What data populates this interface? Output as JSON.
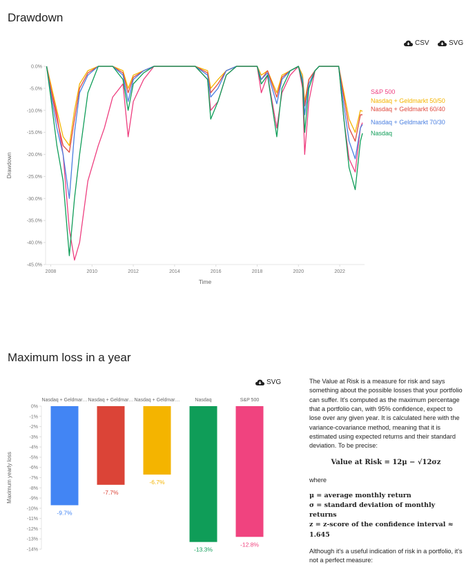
{
  "drawdown": {
    "title": "Drawdown",
    "downloads": {
      "csv": "CSV",
      "svg": "SVG"
    },
    "chart_data": {
      "type": "line",
      "title": "",
      "xlabel": "Time",
      "ylabel": "Drawdown",
      "ylim": [
        -45,
        0
      ],
      "yticks": [
        "0.0%",
        "-5.0%",
        "-10.0%",
        "-15.0%",
        "-20.0%",
        "-25.0%",
        "-30.0%",
        "-35.0%",
        "-40.0%",
        "-45.0%"
      ],
      "xticks": [
        "2008",
        "2010",
        "2012",
        "2014",
        "2016",
        "2018",
        "2020",
        "2022"
      ],
      "xlim": [
        2007.75,
        2023.2
      ],
      "grid": false,
      "legend": "right, at line ends",
      "series": [
        {
          "name": "S&P 500",
          "color": "#ee3e7f",
          "x": [
            2007.8,
            2008.0,
            2008.3,
            2008.6,
            2008.9,
            2009.15,
            2009.4,
            2009.8,
            2010.3,
            2010.6,
            2011.0,
            2011.5,
            2011.75,
            2012.0,
            2012.5,
            2013.0,
            2014.0,
            2015.0,
            2015.6,
            2015.75,
            2016.1,
            2016.5,
            2017.0,
            2018.0,
            2018.2,
            2018.5,
            2018.95,
            2019.2,
            2019.6,
            2020.0,
            2020.2,
            2020.3,
            2020.5,
            2020.8,
            2021.0,
            2021.5,
            2021.95,
            2022.2,
            2022.45,
            2022.75,
            2023.0,
            2023.1
          ],
          "y": [
            0,
            -4,
            -11,
            -20,
            -37,
            -44,
            -40,
            -26,
            -18,
            -14,
            -7,
            -4,
            -16,
            -8,
            -3,
            0,
            0,
            0,
            -3,
            -10,
            -8,
            -2,
            0,
            0,
            -6,
            -2,
            -14,
            -6,
            -2,
            0,
            -5,
            -20,
            -8,
            -1,
            0,
            0,
            0,
            -12,
            -21,
            -24,
            -14,
            -12.8
          ]
        },
        {
          "name": "Nasdaq + Geldmarkt 50/50",
          "color": "#f4b400",
          "x": [
            2007.8,
            2008.0,
            2008.3,
            2008.6,
            2008.9,
            2009.15,
            2009.4,
            2009.8,
            2010.3,
            2010.6,
            2011.0,
            2011.5,
            2011.75,
            2012.0,
            2012.5,
            2013.0,
            2014.0,
            2015.0,
            2015.6,
            2015.75,
            2016.1,
            2016.5,
            2017.0,
            2018.0,
            2018.2,
            2018.5,
            2018.95,
            2019.2,
            2019.6,
            2020.0,
            2020.2,
            2020.3,
            2020.5,
            2020.8,
            2021.0,
            2021.5,
            2021.95,
            2022.2,
            2022.45,
            2022.75,
            2023.0,
            2023.1
          ],
          "y": [
            0,
            -4,
            -10,
            -16,
            -18,
            -10,
            -4,
            -1,
            0,
            0,
            0,
            -1,
            -5,
            -2,
            -1,
            0,
            0,
            0,
            -1,
            -5,
            -3,
            -1,
            0,
            0,
            -2,
            -1,
            -6,
            -2,
            -1,
            0,
            -2,
            -8,
            -3,
            -1,
            0,
            0,
            0,
            -6,
            -12,
            -15,
            -10,
            -10.2
          ]
        },
        {
          "name": "Nasdaq + Geldmarkt 60/40",
          "color": "#e04a3f",
          "x": [
            2007.8,
            2008.0,
            2008.3,
            2008.6,
            2008.9,
            2009.15,
            2009.4,
            2009.8,
            2010.3,
            2010.6,
            2011.0,
            2011.5,
            2011.75,
            2012.0,
            2012.5,
            2013.0,
            2014.0,
            2015.0,
            2015.6,
            2015.75,
            2016.1,
            2016.5,
            2017.0,
            2018.0,
            2018.2,
            2018.5,
            2018.95,
            2019.2,
            2019.6,
            2020.0,
            2020.2,
            2020.3,
            2020.5,
            2020.8,
            2021.0,
            2021.5,
            2021.95,
            2022.2,
            2022.45,
            2022.75,
            2023.0,
            2023.1
          ],
          "y": [
            0,
            -5,
            -12,
            -18,
            -19.5,
            -12,
            -5,
            -1.5,
            0,
            0,
            0,
            -1.5,
            -6,
            -2.5,
            -1,
            0,
            0,
            0,
            -1.5,
            -6,
            -4,
            -1,
            0,
            0,
            -3,
            -1,
            -7,
            -2.5,
            -1,
            0,
            -3,
            -9,
            -3,
            -1,
            0,
            0,
            0,
            -7,
            -14,
            -17,
            -11,
            -11.0
          ]
        },
        {
          "name": "Nasdaq + Geldmarkt 70/30",
          "color": "#4a7fe0",
          "x": [
            2007.8,
            2008.0,
            2008.3,
            2008.6,
            2008.9,
            2009.15,
            2009.4,
            2009.8,
            2010.3,
            2010.6,
            2011.0,
            2011.5,
            2011.75,
            2012.0,
            2012.5,
            2013.0,
            2014.0,
            2015.0,
            2015.6,
            2015.75,
            2016.1,
            2016.5,
            2017.0,
            2018.0,
            2018.2,
            2018.5,
            2018.95,
            2019.2,
            2019.6,
            2020.0,
            2020.2,
            2020.3,
            2020.5,
            2020.8,
            2021.0,
            2021.5,
            2021.95,
            2022.2,
            2022.45,
            2022.75,
            2023.0,
            2023.1
          ],
          "y": [
            0,
            -6,
            -14,
            -20,
            -30,
            -15,
            -6,
            -2,
            0,
            0,
            0,
            -2,
            -8,
            -3,
            -1,
            0,
            0,
            0,
            -2,
            -7,
            -5,
            -1,
            0,
            0,
            -3,
            -1.5,
            -8.5,
            -3,
            -1,
            0,
            -3,
            -11,
            -4,
            -1,
            0,
            0,
            0,
            -9,
            -17,
            -21,
            -14,
            -13.2
          ]
        },
        {
          "name": "Nasdaq",
          "color": "#0f9d58",
          "x": [
            2007.8,
            2008.0,
            2008.3,
            2008.6,
            2008.9,
            2009.15,
            2009.4,
            2009.8,
            2010.3,
            2010.6,
            2011.0,
            2011.5,
            2011.75,
            2012.0,
            2012.5,
            2013.0,
            2014.0,
            2015.0,
            2015.6,
            2015.75,
            2016.1,
            2016.5,
            2017.0,
            2018.0,
            2018.2,
            2018.5,
            2018.95,
            2019.2,
            2019.6,
            2020.0,
            2020.2,
            2020.3,
            2020.5,
            2020.8,
            2021.0,
            2021.5,
            2021.95,
            2022.2,
            2022.45,
            2022.75,
            2023.0,
            2023.1
          ],
          "y": [
            0,
            -7,
            -18,
            -26,
            -43,
            -30,
            -20,
            -6,
            0,
            0,
            0,
            -3,
            -10,
            -4,
            -1.5,
            0,
            0,
            0,
            -3,
            -12,
            -8,
            -2,
            0,
            0,
            -4,
            -2,
            -16,
            -5,
            -1,
            0,
            -4,
            -15,
            -5,
            -1,
            0,
            0,
            0,
            -12,
            -23,
            -28,
            -17,
            -15.2
          ]
        }
      ]
    }
  },
  "var": {
    "title": "Maximum loss in a year",
    "downloads": {
      "svg": "SVG"
    },
    "chart_data": {
      "type": "bar",
      "title": "",
      "xlabel": "",
      "ylabel": "Maximum yearly loss",
      "ylim": [
        -14,
        0
      ],
      "yticks": [
        "0%",
        "-1%",
        "-2%",
        "-3%",
        "-4%",
        "-5%",
        "-6%",
        "-7%",
        "-8%",
        "-9%",
        "-10%",
        "-11%",
        "-12%",
        "-13%",
        "-14%"
      ],
      "categories": [
        "Nasdaq + Geldmar…",
        "Nasdaq + Geldmar…",
        "Nasdaq + Geldmar…",
        "Nasdaq",
        "S&P 500"
      ],
      "values": [
        -9.7,
        -7.7,
        -6.7,
        -13.3,
        -12.8
      ],
      "value_labels": [
        "-9.7%",
        "-7.7%",
        "-6.7%",
        "-13.3%",
        "-12.8%"
      ],
      "colors": [
        "#4285f4",
        "#db4437",
        "#f4b400",
        "#0f9d58",
        "#f0437f"
      ]
    },
    "text": {
      "p1": "The Value at Risk is a measure for risk and says something about the possible losses that your portfolio can suffer. It's computed as the maximum percentage that a portfolio can, with 95% confidence, expect to lose over any given year. It is calculated here with the variance-covariance method, meaning that it is estimated using expected returns and their standard deviation. To be precise:",
      "formula": "Value at Risk = 12μ − √12σz",
      "where": "where",
      "def1": "μ = average monthly return",
      "def2": "σ = standard deviation of monthly returns",
      "def3": "z = z-score of the confidence interval ≈ 1.645",
      "p2": "Although it's a useful indication of risk in a portfolio, it's not a perfect measure:"
    }
  }
}
